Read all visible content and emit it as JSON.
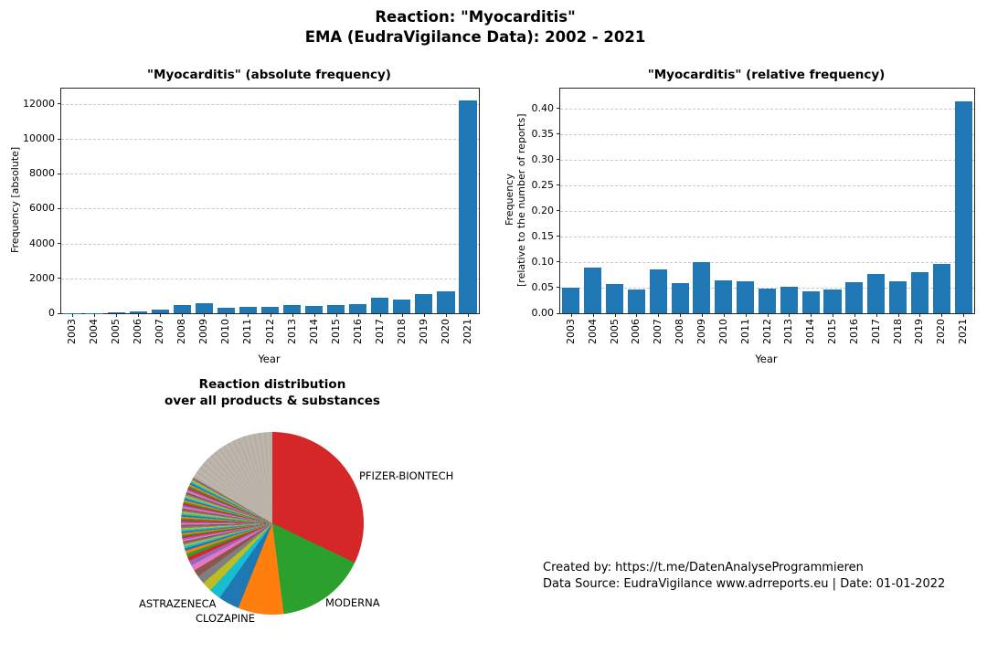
{
  "header": {
    "title_line1": "Reaction: \"Myocarditis\"",
    "title_line2": "EMA (EudraVigilance Data): 2002 - 2021"
  },
  "colors": {
    "bar": "#1f77b4",
    "grid": "#c8c8c8",
    "spine": "#262626"
  },
  "chart_data": [
    {
      "type": "bar",
      "title": "\"Myocarditis\" (absolute frequency)",
      "xlabel": "Year",
      "ylabel": "Frequency [absolute]",
      "categories": [
        "2003",
        "2004",
        "2005",
        "2006",
        "2007",
        "2008",
        "2009",
        "2010",
        "2011",
        "2012",
        "2013",
        "2014",
        "2015",
        "2016",
        "2017",
        "2018",
        "2019",
        "2020",
        "2021"
      ],
      "values": [
        5,
        15,
        55,
        80,
        215,
        470,
        555,
        320,
        385,
        385,
        465,
        420,
        450,
        520,
        870,
        800,
        1110,
        1270,
        12200
      ],
      "yticks": [
        0,
        2000,
        4000,
        6000,
        8000,
        10000,
        12000
      ],
      "ytick_labels": [
        "0",
        "2000",
        "4000",
        "6000",
        "8000",
        "10000",
        "12000"
      ],
      "ylim": [
        0,
        12890
      ],
      "grid": true,
      "legend": "none"
    },
    {
      "type": "bar",
      "title": "\"Myocarditis\" (relative frequency)",
      "xlabel": "Year",
      "ylabel_line1": "Frequency",
      "ylabel_line2": "[relative to the number of reports]",
      "categories": [
        "2003",
        "2004",
        "2005",
        "2006",
        "2007",
        "2008",
        "2009",
        "2010",
        "2011",
        "2012",
        "2013",
        "2014",
        "2015",
        "2016",
        "2017",
        "2018",
        "2019",
        "2020",
        "2021"
      ],
      "values": [
        0.05,
        0.089,
        0.057,
        0.046,
        0.085,
        0.059,
        0.1,
        0.065,
        0.063,
        0.048,
        0.051,
        0.043,
        0.047,
        0.06,
        0.077,
        0.062,
        0.08,
        0.097,
        0.413
      ],
      "yticks": [
        0,
        0.05,
        0.1,
        0.15,
        0.2,
        0.25,
        0.3,
        0.35,
        0.4
      ],
      "ytick_labels": [
        "0.00",
        "0.05",
        "0.10",
        "0.15",
        "0.20",
        "0.25",
        "0.30",
        "0.35",
        "0.40"
      ],
      "ylim": [
        0,
        0.4387
      ],
      "grid": true,
      "legend": "none"
    },
    {
      "type": "pie",
      "title_line1": "Reaction distribution",
      "title_line2": "over all products & substances",
      "slices": [
        {
          "label": "PFIZER-BIONTECH",
          "pct": 32.1,
          "color": "#d62728"
        },
        {
          "label": "MODERNA",
          "pct": 15.9,
          "color": "#2ca02c"
        },
        {
          "label": "CLOZAPINE",
          "pct": 8.1,
          "color": "#ff7f0e"
        },
        {
          "label": "ASTRAZENECA",
          "pct": 3.7,
          "color": "#1f77b4"
        }
      ],
      "unlabeled_small_slices_pct": 40.2,
      "fan_palette": [
        "#17becf",
        "#bcbd22",
        "#7f7f7f",
        "#8c564b",
        "#e377c2",
        "#9467bd",
        "#d62728",
        "#2ca02c",
        "#ff7f0e",
        "#1f77b4"
      ],
      "fan_tan": [
        "#b7aea5",
        "#bfb6ad"
      ]
    }
  ],
  "footer": {
    "line1": "Created by: https://t.me/DatenAnalyseProgrammieren",
    "line2": "Data Source: EudraVigilance www.adrreports.eu | Date: 01-01-2022"
  }
}
